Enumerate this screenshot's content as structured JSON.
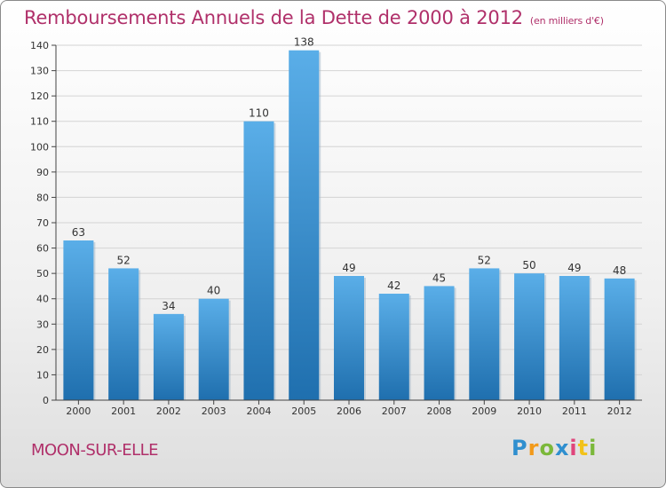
{
  "title": "Remboursements Annuels de la Dette de 2000 à 2012",
  "unit_note": "(en milliers d'€)",
  "city": "MOON-SUR-ELLE",
  "logo": {
    "text": "Proxiti",
    "letters": [
      "P",
      "r",
      "o",
      "x",
      "i",
      "t",
      "i"
    ]
  },
  "colors": {
    "bar_top": "#5aaee8",
    "bar_bottom": "#1f6fae",
    "title": "#b0306a"
  },
  "chart_data": {
    "type": "bar",
    "title": "Remboursements Annuels de la Dette de 2000 à 2012",
    "xlabel": "",
    "ylabel": "",
    "categories": [
      "2000",
      "2001",
      "2002",
      "2003",
      "2004",
      "2005",
      "2006",
      "2007",
      "2008",
      "2009",
      "2010",
      "2011",
      "2012"
    ],
    "values": [
      63,
      52,
      34,
      40,
      110,
      138,
      49,
      42,
      45,
      52,
      50,
      49,
      48
    ],
    "ylim": [
      0,
      140
    ],
    "yticks": [
      0,
      10,
      20,
      30,
      40,
      50,
      60,
      70,
      80,
      90,
      100,
      110,
      120,
      130,
      140
    ],
    "grid": true,
    "data_labels": true
  }
}
